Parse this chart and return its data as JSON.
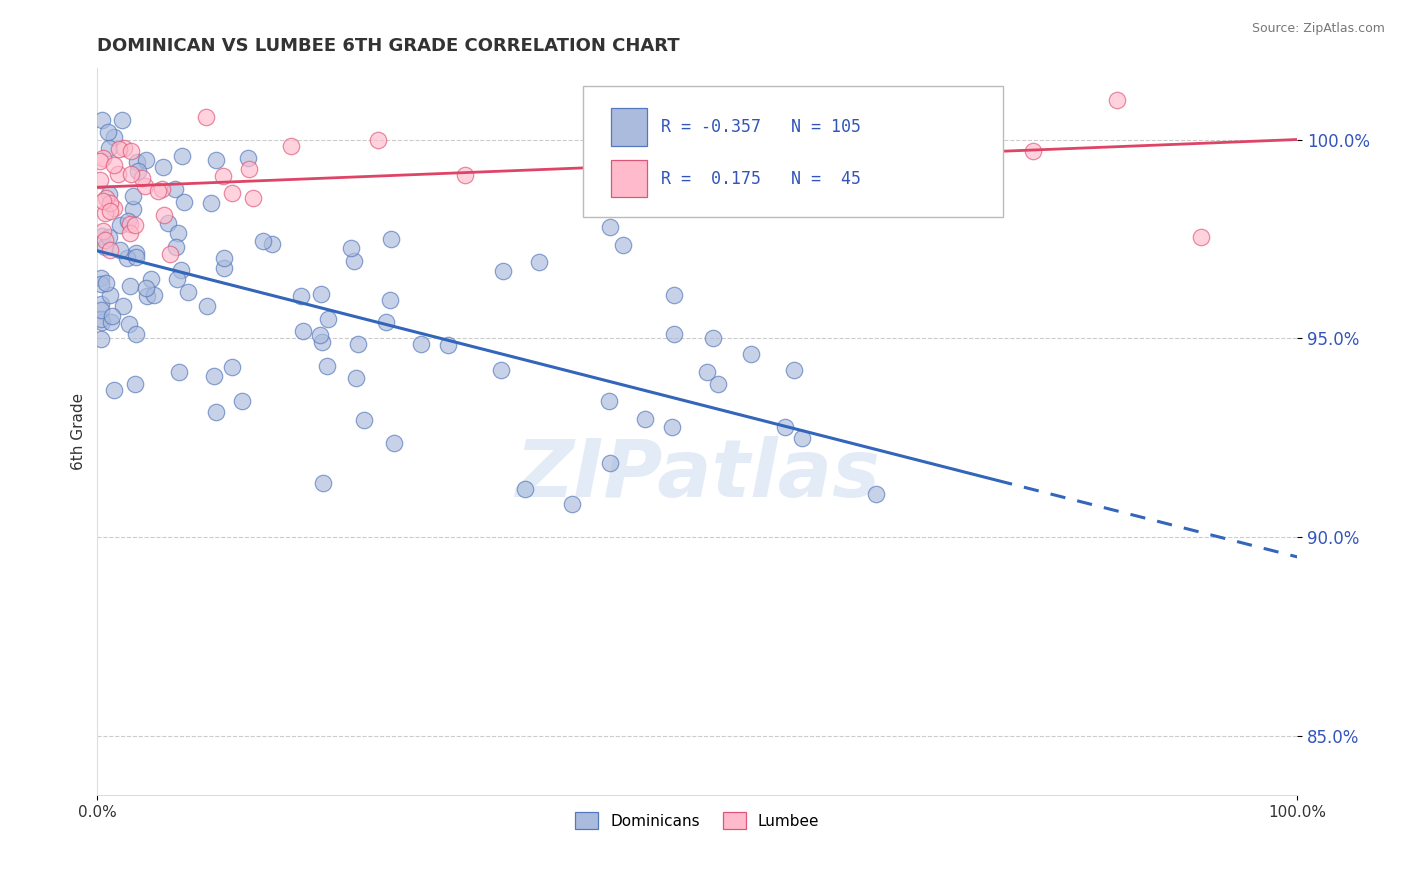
{
  "title": "DOMINICAN VS LUMBEE 6TH GRADE CORRELATION CHART",
  "source": "Source: ZipAtlas.com",
  "ylabel": "6th Grade",
  "xlim": [
    0.0,
    100.0
  ],
  "ylim": [
    83.5,
    101.8
  ],
  "ytick_vals": [
    85.0,
    90.0,
    95.0,
    100.0
  ],
  "ytick_labels": [
    "85.0%",
    "90.0%",
    "95.0%",
    "100.0%"
  ],
  "xtick_vals": [
    0,
    100
  ],
  "xtick_labels": [
    "0.0%",
    "100.0%"
  ],
  "blue_R": -0.357,
  "blue_N": 105,
  "pink_R": 0.175,
  "pink_N": 45,
  "blue_color": "#AABBDD",
  "pink_color": "#FFBBCC",
  "blue_edge_color": "#5577BB",
  "pink_edge_color": "#DD5577",
  "blue_line_color": "#3366BB",
  "pink_line_color": "#DD4466",
  "watermark": "ZIPatlas",
  "legend_label_blue": "Dominicans",
  "legend_label_pink": "Lumbee",
  "title_color": "#333333",
  "source_color": "#777777",
  "blue_trend_start_y": 97.2,
  "blue_trend_end_y": 89.5,
  "pink_trend_start_y": 98.8,
  "pink_trend_end_y": 100.0,
  "blue_solid_end_x": 75,
  "grid_color": "#cccccc"
}
